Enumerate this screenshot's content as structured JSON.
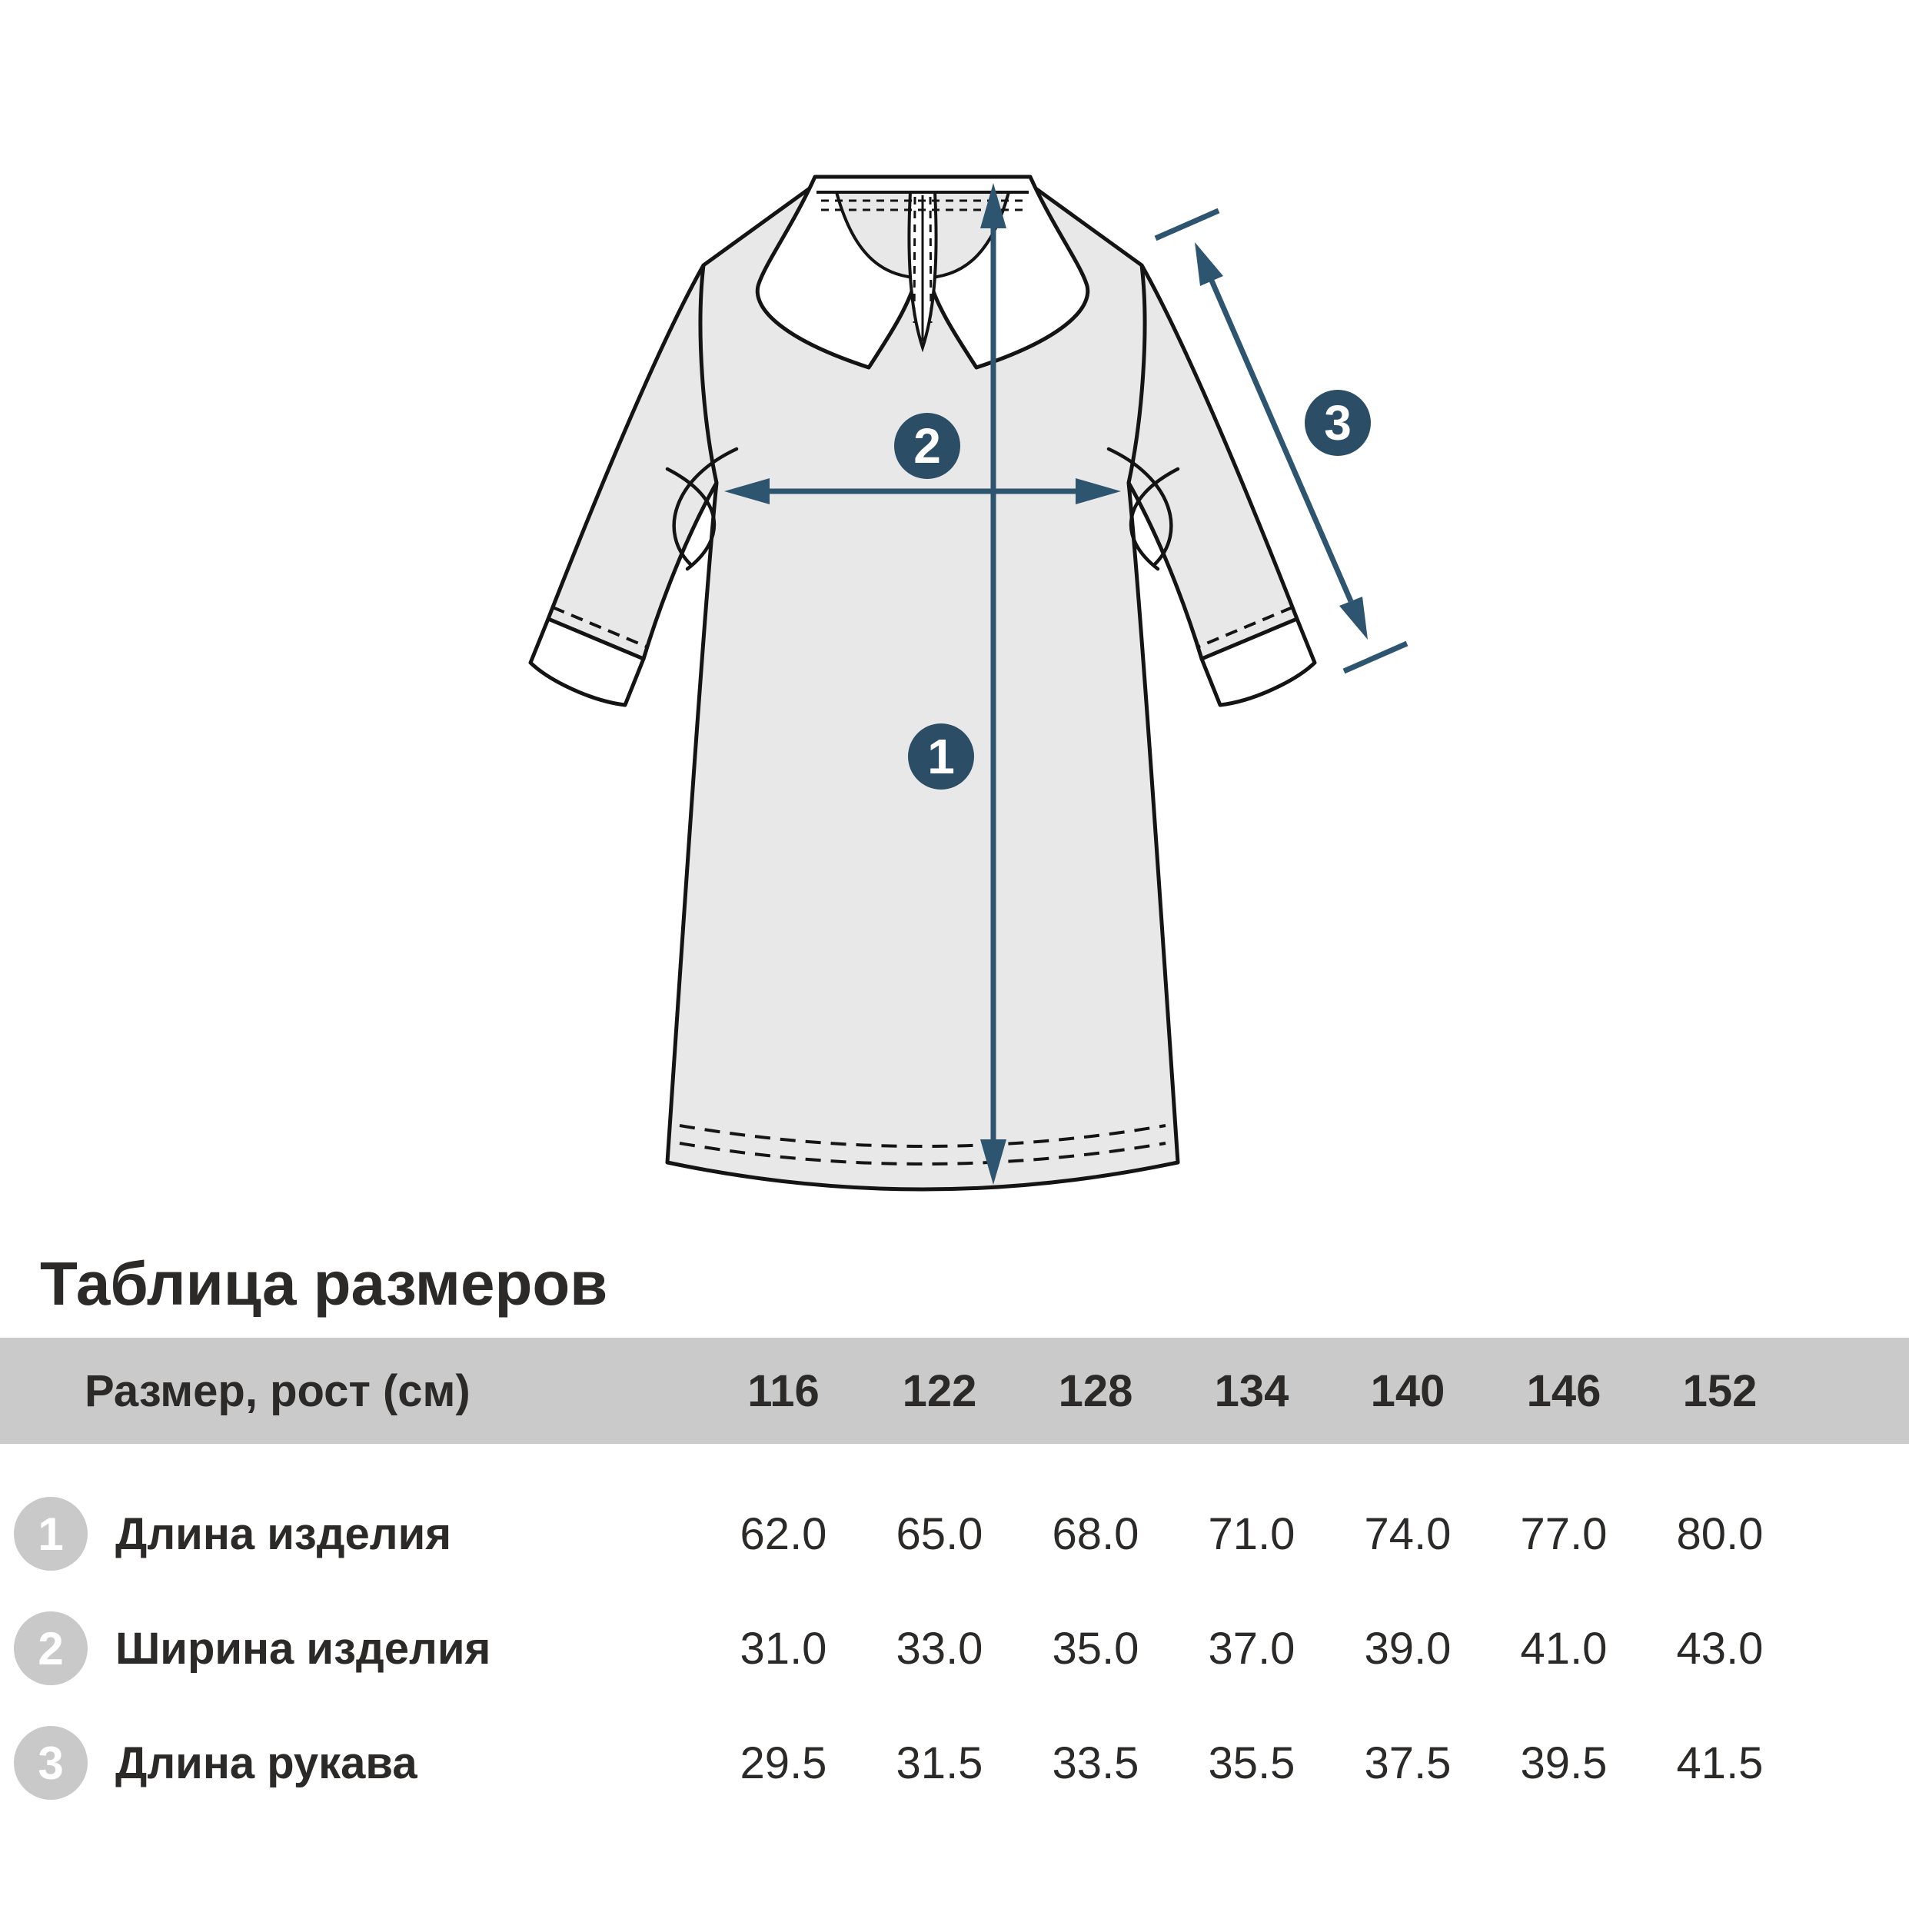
{
  "title": "Таблица размеров",
  "diagram": {
    "garment": "dress-flat-sketch",
    "markers": [
      "1",
      "2",
      "3"
    ],
    "colors": {
      "measure_line": "#2e5570",
      "measure_badge": "#2b4e66",
      "dress_fill": "#e8e8e9",
      "outline": "#141414",
      "collar_fill": "#ffffff"
    }
  },
  "table": {
    "header_label": "Размер, рост (см)",
    "sizes": [
      "116",
      "122",
      "128",
      "134",
      "140",
      "146",
      "152"
    ],
    "rows": [
      {
        "num": "1",
        "label": "Длина изделия",
        "values": [
          "62.0",
          "65.0",
          "68.0",
          "71.0",
          "74.0",
          "77.0",
          "80.0"
        ]
      },
      {
        "num": "2",
        "label": "Ширина изделия",
        "values": [
          "31.0",
          "33.0",
          "35.0",
          "37.0",
          "39.0",
          "41.0",
          "43.0"
        ]
      },
      {
        "num": "3",
        "label": "Длина рукава",
        "values": [
          "29.5",
          "31.5",
          "33.5",
          "35.5",
          "37.5",
          "39.5",
          "41.5"
        ]
      }
    ]
  }
}
